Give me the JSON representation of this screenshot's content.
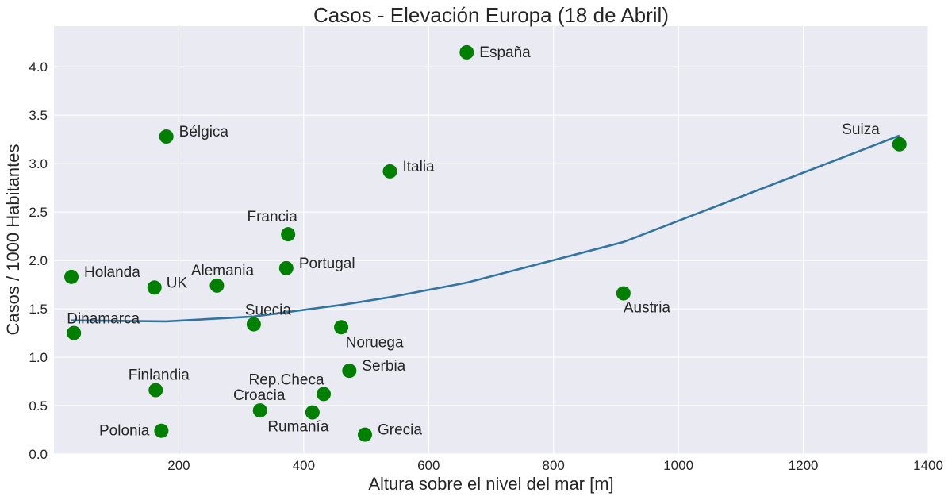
{
  "chart_data": {
    "type": "scatter",
    "title": "Casos - Elevación Europa (18 de Abril)",
    "xlabel": "Altura sobre el nivel del mar [m]",
    "ylabel": "Casos / 1000 Habitantes",
    "xlim": [
      0,
      1400
    ],
    "ylim": [
      0,
      4.42
    ],
    "xticks": [
      200,
      400,
      600,
      800,
      1000,
      1200,
      1400
    ],
    "yticks": [
      0.0,
      0.5,
      1.0,
      1.5,
      2.0,
      2.5,
      3.0,
      3.5,
      4.0
    ],
    "grid": true,
    "colors": {
      "background": "#EAEAF2",
      "grid": "#FFFFFF",
      "points": "#008000",
      "trend": "#3274A1"
    },
    "points": [
      {
        "label": "España",
        "x": 661,
        "y": 4.15
      },
      {
        "label": "Bélgica",
        "x": 180,
        "y": 3.28
      },
      {
        "label": "Suiza",
        "x": 1354,
        "y": 3.2
      },
      {
        "label": "Italia",
        "x": 538,
        "y": 2.92
      },
      {
        "label": "Francia",
        "x": 375,
        "y": 2.27
      },
      {
        "label": "Portugal",
        "x": 372,
        "y": 1.92
      },
      {
        "label": "Holanda",
        "x": 28,
        "y": 1.83
      },
      {
        "label": "UK",
        "x": 161,
        "y": 1.72
      },
      {
        "label": "Alemania",
        "x": 261,
        "y": 1.74
      },
      {
        "label": "Austria",
        "x": 912,
        "y": 1.66
      },
      {
        "label": "Suecia",
        "x": 320,
        "y": 1.34
      },
      {
        "label": "Noruega",
        "x": 460,
        "y": 1.31
      },
      {
        "label": "Dinamarca",
        "x": 32,
        "y": 1.25
      },
      {
        "label": "Serbia",
        "x": 473,
        "y": 0.86
      },
      {
        "label": "Finlandia",
        "x": 163,
        "y": 0.66
      },
      {
        "label": "Rep.Checa",
        "x": 432,
        "y": 0.62
      },
      {
        "label": "Croacia",
        "x": 330,
        "y": 0.45
      },
      {
        "label": "Rumanía",
        "x": 414,
        "y": 0.43
      },
      {
        "label": "Polonia",
        "x": 172,
        "y": 0.24
      },
      {
        "label": "Grecia",
        "x": 498,
        "y": 0.2
      }
    ],
    "trend": {
      "x": [
        28,
        180,
        320,
        460,
        538,
        661,
        912,
        1354
      ],
      "y": [
        1.38,
        1.37,
        1.42,
        1.54,
        1.62,
        1.77,
        2.19,
        3.29
      ]
    }
  }
}
